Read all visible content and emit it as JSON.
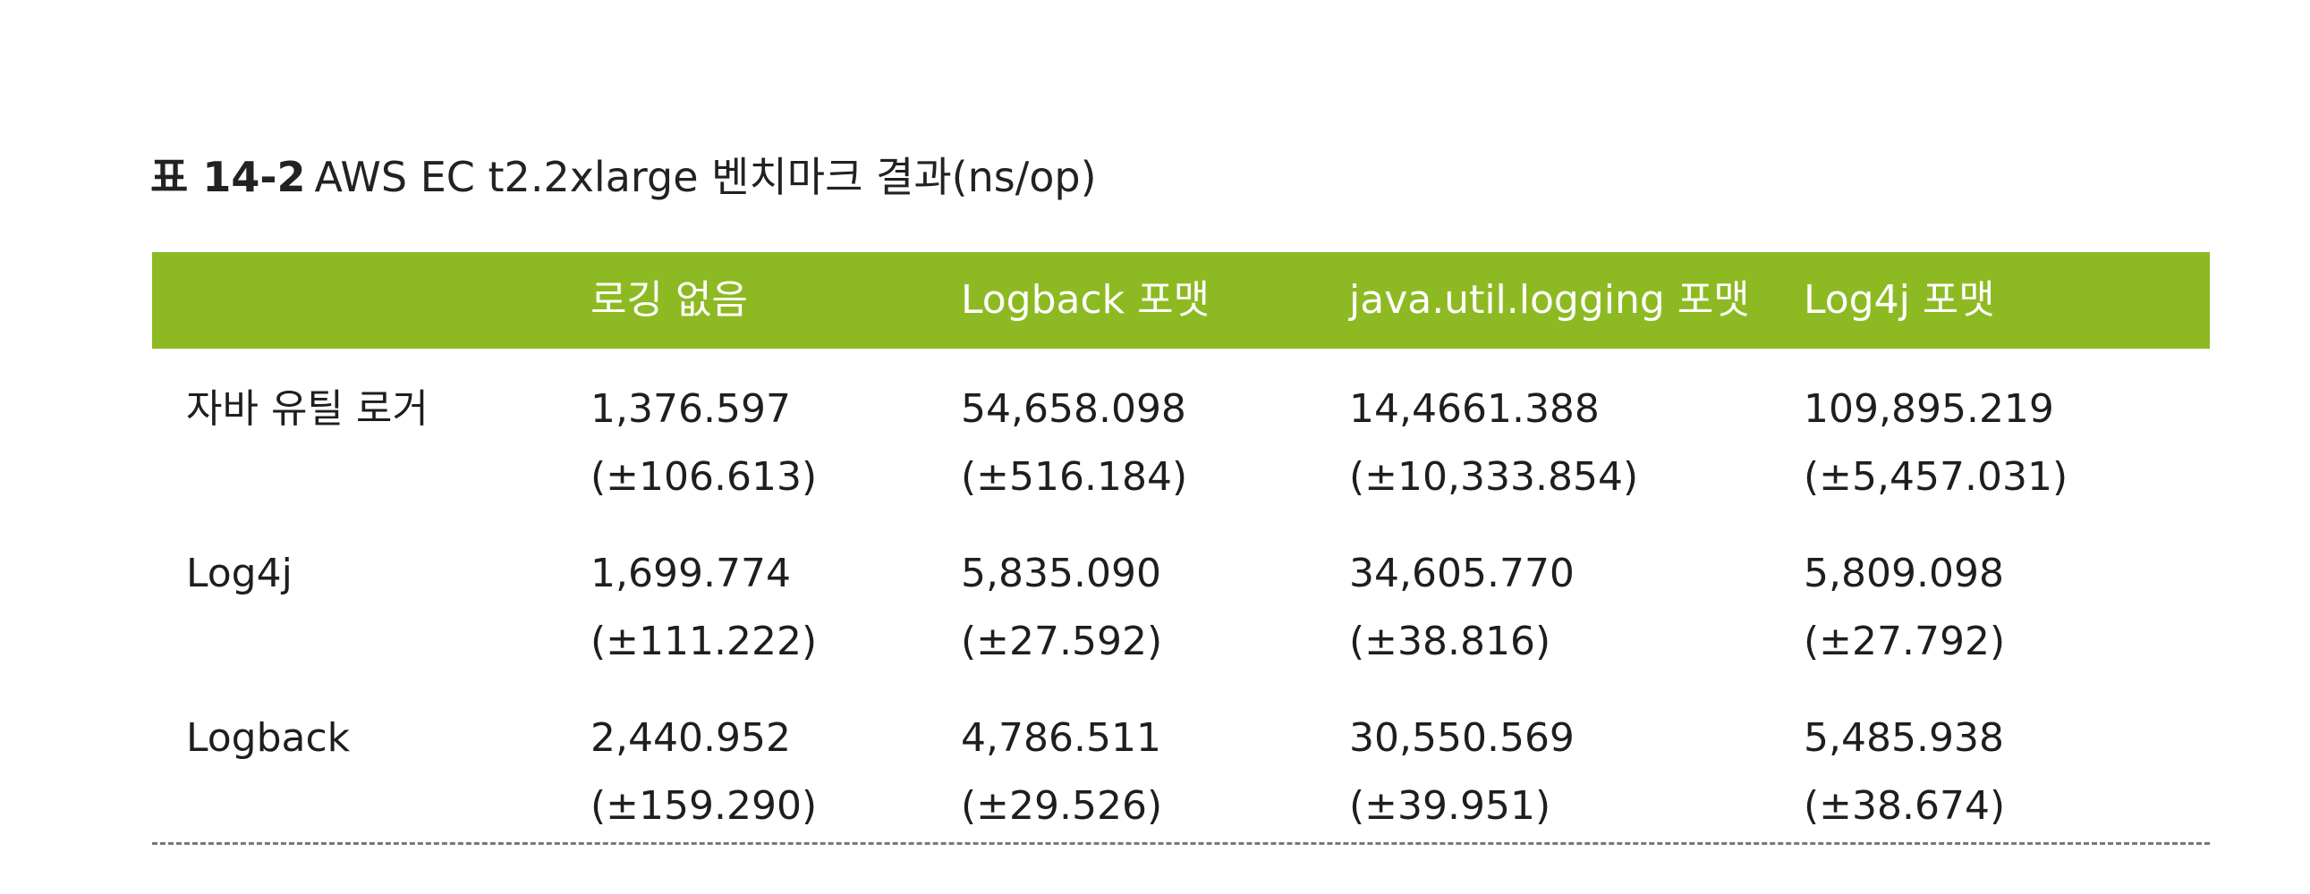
{
  "caption": {
    "label": "표 14-2",
    "text": "AWS EC t2.2xlarge 벤치마크 결과(ns/op)"
  },
  "header": {
    "columns": [
      "로깅 없음",
      "Logback 포맷",
      "java.util.logging 포맷",
      "Log4j 포맷"
    ]
  },
  "rows": [
    {
      "label": "자바 유틸 로거",
      "cells": [
        {
          "value": "1,376.597",
          "error": "(±106.613)"
        },
        {
          "value": "54,658.098",
          "error": "(±516.184)"
        },
        {
          "value": "14,4661.388",
          "error": "(±10,333.854)"
        },
        {
          "value": "109,895.219",
          "error": "(±5,457.031)"
        }
      ]
    },
    {
      "label": "Log4j",
      "cells": [
        {
          "value": "1,699.774",
          "error": "(±111.222)"
        },
        {
          "value": "5,835.090",
          "error": "(±27.592)"
        },
        {
          "value": "34,605.770",
          "error": "(±38.816)"
        },
        {
          "value": "5,809.098",
          "error": "(±27.792)"
        }
      ]
    },
    {
      "label": "Logback",
      "cells": [
        {
          "value": "2,440.952",
          "error": "(±159.290)"
        },
        {
          "value": "4,786.511",
          "error": "(±29.526)"
        },
        {
          "value": "30,550.569",
          "error": "(±39.951)"
        },
        {
          "value": "5,485.938",
          "error": "(±38.674)"
        }
      ]
    }
  ]
}
